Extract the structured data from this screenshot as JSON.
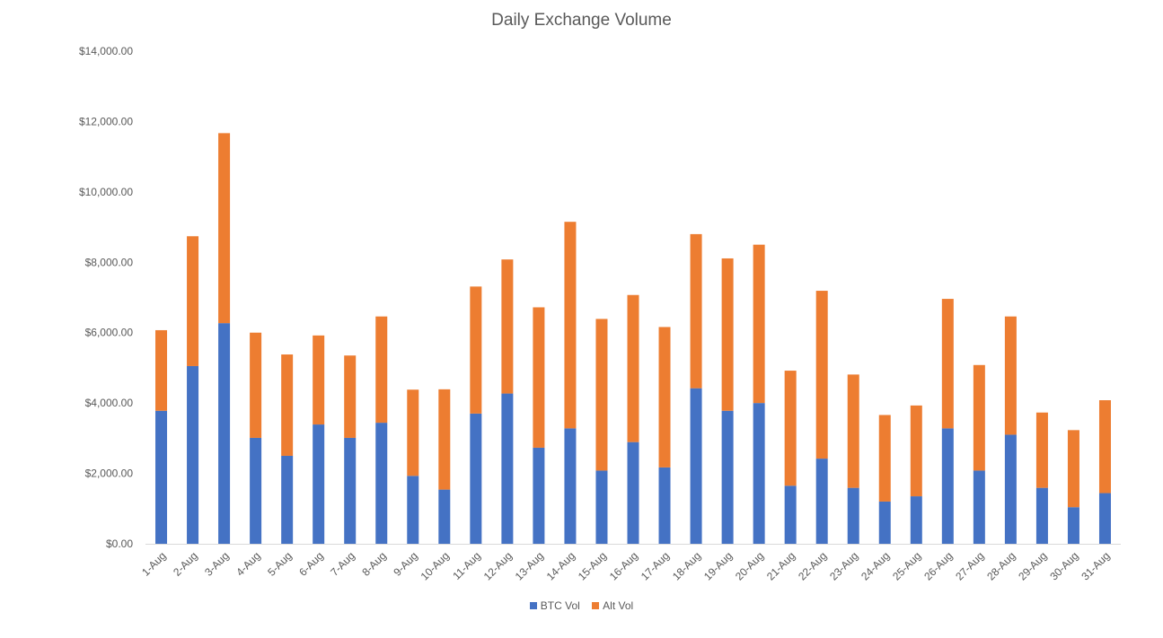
{
  "chart_data": {
    "type": "bar",
    "stacked": true,
    "title": "Daily Exchange Volume",
    "xlabel": "",
    "ylabel": "",
    "ylim": [
      0,
      14000
    ],
    "y_ticks": [
      "$0.00",
      "$2,000.00",
      "$4,000.00",
      "$6,000.00",
      "$8,000.00",
      "$10,000.00",
      "$12,000.00",
      "$14,000.00"
    ],
    "y_tick_values": [
      0,
      2000,
      4000,
      6000,
      8000,
      10000,
      12000,
      14000
    ],
    "grid": false,
    "legend_position": "bottom",
    "categories": [
      "1-Aug",
      "2-Aug",
      "3-Aug",
      "4-Aug",
      "5-Aug",
      "6-Aug",
      "7-Aug",
      "8-Aug",
      "9-Aug",
      "10-Aug",
      "11-Aug",
      "12-Aug",
      "13-Aug",
      "14-Aug",
      "15-Aug",
      "16-Aug",
      "17-Aug",
      "18-Aug",
      "19-Aug",
      "20-Aug",
      "21-Aug",
      "22-Aug",
      "23-Aug",
      "24-Aug",
      "25-Aug",
      "26-Aug",
      "27-Aug",
      "28-Aug",
      "29-Aug",
      "30-Aug",
      "31-Aug"
    ],
    "series": [
      {
        "name": "BTC Vol",
        "color": "#4472c4",
        "values": [
          3780,
          5050,
          6270,
          3010,
          2500,
          3390,
          3010,
          3440,
          1930,
          1540,
          3700,
          4270,
          2730,
          3280,
          2080,
          2890,
          2170,
          4420,
          3780,
          4000,
          1650,
          2420,
          1590,
          1200,
          1350,
          3280,
          2080,
          3100,
          1590,
          1040,
          1440
        ]
      },
      {
        "name": "Alt Vol",
        "color": "#ed7d31",
        "values": [
          2290,
          3690,
          5400,
          2990,
          2880,
          2530,
          2340,
          3020,
          2450,
          2850,
          3610,
          3810,
          3990,
          5870,
          4310,
          4180,
          3990,
          4380,
          4330,
          4500,
          3270,
          4770,
          3220,
          2460,
          2580,
          3680,
          3000,
          3360,
          2140,
          2190,
          2640
        ]
      }
    ]
  }
}
